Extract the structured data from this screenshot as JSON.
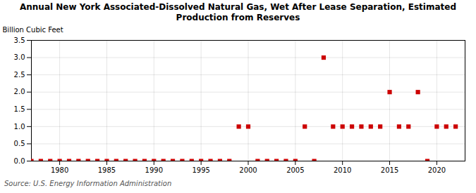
{
  "chart_data": {
    "type": "scatter",
    "title": "Annual New York Associated-Dissolved Natural Gas, Wet After Lease Separation, Estimated\nProduction from Reserves",
    "ylabel": "Billion Cubic Feet",
    "source": "Source: U.S. Energy Information Administration",
    "color": "#cc0000",
    "marker": "square",
    "grid": true,
    "xlim": [
      1977,
      2023
    ],
    "ylim": [
      0.0,
      3.5
    ],
    "xticks": [
      1980,
      1985,
      1990,
      1995,
      2000,
      2005,
      2010,
      2015,
      2020
    ],
    "yticks": [
      {
        "value": 0.0,
        "label": "0.0"
      },
      {
        "value": 0.5,
        "label": "0.5"
      },
      {
        "value": 1.0,
        "label": "1.0"
      },
      {
        "value": 1.5,
        "label": "1.5"
      },
      {
        "value": 2.0,
        "label": "2.0"
      },
      {
        "value": 2.5,
        "label": "2.5"
      },
      {
        "value": 3.0,
        "label": "3.0"
      },
      {
        "value": 3.5,
        "label": "3.5"
      }
    ],
    "x": [
      1977,
      1978,
      1979,
      1980,
      1981,
      1982,
      1983,
      1984,
      1985,
      1986,
      1987,
      1988,
      1989,
      1990,
      1991,
      1992,
      1993,
      1994,
      1995,
      1996,
      1997,
      1998,
      1999,
      2000,
      2001,
      2002,
      2003,
      2004,
      2005,
      2006,
      2007,
      2008,
      2009,
      2010,
      2011,
      2012,
      2013,
      2014,
      2015,
      2016,
      2017,
      2018,
      2019,
      2020,
      2021,
      2022
    ],
    "values": [
      0.0,
      0.0,
      0.0,
      0.0,
      0.0,
      0.0,
      0.0,
      0.0,
      0.0,
      0.0,
      0.0,
      0.0,
      0.0,
      0.0,
      0.0,
      0.0,
      0.0,
      0.0,
      0.0,
      0.0,
      0.0,
      0.0,
      1.0,
      1.0,
      0.0,
      0.0,
      0.0,
      0.0,
      0.0,
      1.0,
      0.0,
      3.0,
      1.0,
      1.0,
      1.0,
      1.0,
      1.0,
      1.0,
      2.0,
      1.0,
      1.0,
      2.0,
      0.0,
      1.0,
      1.0,
      1.0
    ]
  }
}
